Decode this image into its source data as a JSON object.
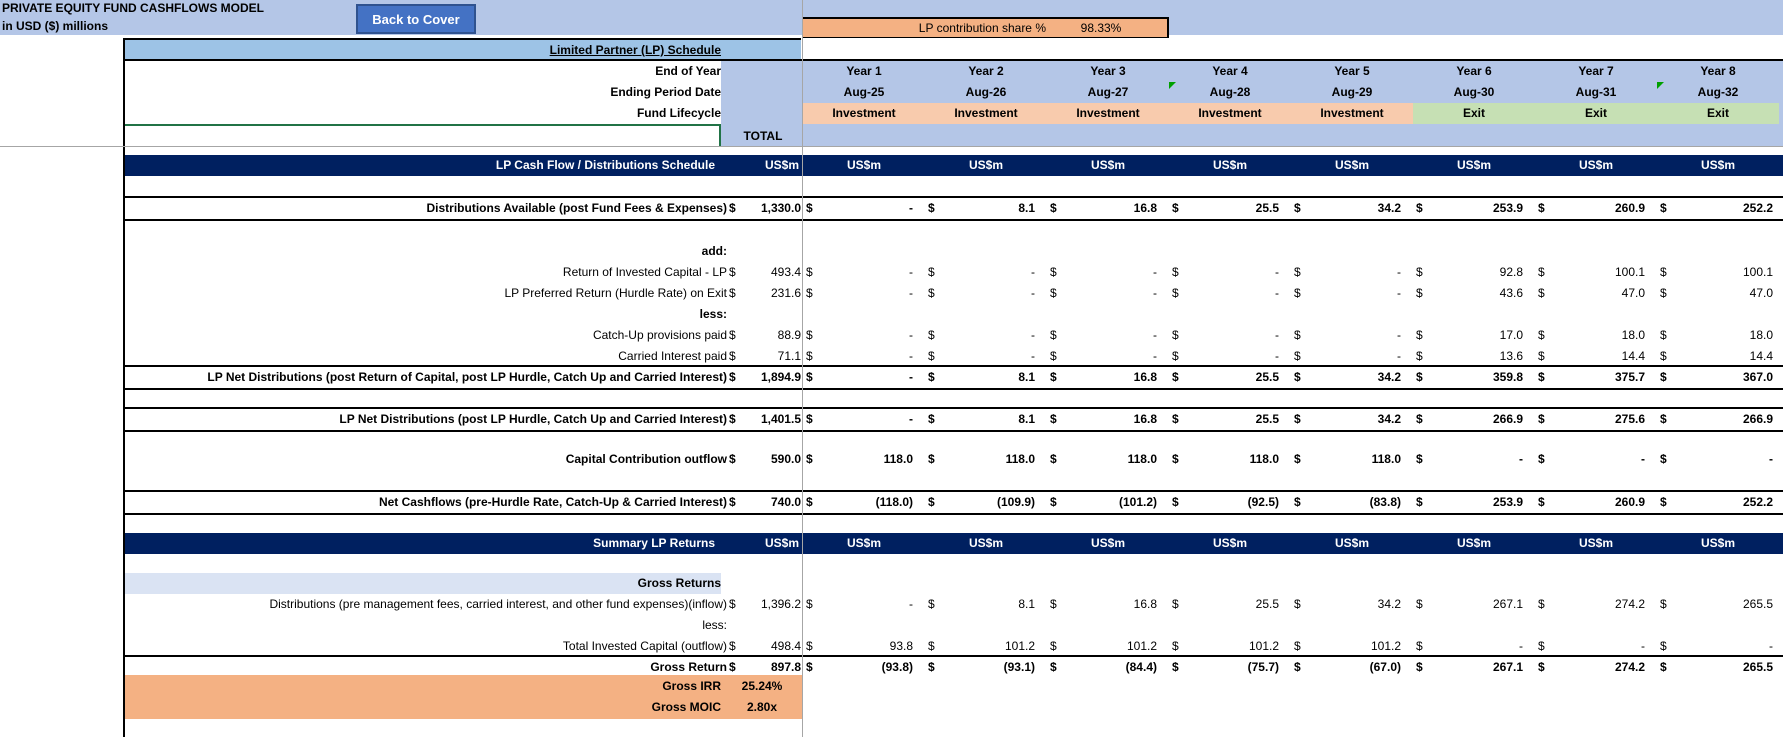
{
  "header": {
    "title": "PRIVATE EQUITY FUND CASHFLOWS MODEL",
    "subtitle": "in USD ($) millions",
    "back_button": "Back to Cover",
    "lp_share_label": "LP contribution share %",
    "lp_share_value": "98.33%"
  },
  "schedule": {
    "title": "Limited Partner (LP) Schedule",
    "row_labels": {
      "end_of_year": "End of Year",
      "ending_period_date": "Ending Period Date",
      "fund_lifecycle": "Fund Lifecycle"
    },
    "total_label": "TOTAL",
    "years": [
      "Year 1",
      "Year 2",
      "Year 3",
      "Year 4",
      "Year 5",
      "Year 6",
      "Year 7",
      "Year 8"
    ],
    "dates": [
      "Aug-25",
      "Aug-26",
      "Aug-27",
      "Aug-28",
      "Aug-29",
      "Aug-30",
      "Aug-31",
      "Aug-32"
    ],
    "lifecycle": [
      "Investment",
      "Investment",
      "Investment",
      "Investment",
      "Investment",
      "Exit",
      "Exit",
      "Exit"
    ]
  },
  "cashflow_section": {
    "title": "LP Cash Flow / Distributions Schedule",
    "unit": "US$m",
    "currency": "$",
    "rows": {
      "dist_available": {
        "label": "Distributions Available (post Fund Fees & Expenses)",
        "total": "1,330.0",
        "values": [
          "-",
          "8.1",
          "16.8",
          "25.5",
          "34.2",
          "253.9",
          "260.9",
          "252.2"
        ]
      },
      "add": {
        "label": "add:"
      },
      "return_capital": {
        "label": "Return of Invested Capital - LP",
        "total": "493.4",
        "values": [
          "-",
          "-",
          "-",
          "-",
          "-",
          "92.8",
          "100.1",
          "100.1"
        ]
      },
      "pref_return": {
        "label": "LP Preferred Return (Hurdle Rate) on Exit",
        "total": "231.6",
        "values": [
          "-",
          "-",
          "-",
          "-",
          "-",
          "43.6",
          "47.0",
          "47.0"
        ]
      },
      "less": {
        "label": "less:"
      },
      "catch_up": {
        "label": "Catch-Up provisions paid",
        "total": "88.9",
        "values": [
          "-",
          "-",
          "-",
          "-",
          "-",
          "17.0",
          "18.0",
          "18.0"
        ]
      },
      "carried": {
        "label": "Carried Interest paid",
        "total": "71.1",
        "values": [
          "-",
          "-",
          "-",
          "-",
          "-",
          "13.6",
          "14.4",
          "14.4"
        ]
      },
      "lp_net_1": {
        "label": "LP Net Distributions (post Return of Capital, post LP Hurdle, Catch Up and Carried Interest)",
        "total": "1,894.9",
        "values": [
          "-",
          "8.1",
          "16.8",
          "25.5",
          "34.2",
          "359.8",
          "375.7",
          "367.0"
        ]
      },
      "lp_net_2": {
        "label": "LP Net Distributions (post LP Hurdle, Catch Up and Carried Interest)",
        "total": "1,401.5",
        "values": [
          "-",
          "8.1",
          "16.8",
          "25.5",
          "34.2",
          "266.9",
          "275.6",
          "266.9"
        ]
      },
      "capital_contribution": {
        "label": "Capital Contribution outflow",
        "total": "590.0",
        "values": [
          "118.0",
          "118.0",
          "118.0",
          "118.0",
          "118.0",
          "-",
          "-",
          "-"
        ]
      },
      "net_cashflows": {
        "label": "Net Cashflows (pre-Hurdle Rate, Catch-Up & Carried Interest)",
        "total": "740.0",
        "values": [
          "(118.0)",
          "(109.9)",
          "(101.2)",
          "(92.5)",
          "(83.8)",
          "253.9",
          "260.9",
          "252.2"
        ]
      }
    }
  },
  "summary_section": {
    "title": "Summary LP Returns",
    "unit": "US$m",
    "gross_returns_label": "Gross Returns",
    "rows": {
      "distributions": {
        "label": "Distributions (pre management fees, carried interest, and other fund expenses)(inflow)",
        "total": "1,396.2",
        "values": [
          "-",
          "8.1",
          "16.8",
          "25.5",
          "34.2",
          "267.1",
          "274.2",
          "265.5"
        ]
      },
      "less": {
        "label": "less:"
      },
      "invested": {
        "label": "Total Invested Capital (outflow)",
        "total": "498.4",
        "values": [
          "93.8",
          "101.2",
          "101.2",
          "101.2",
          "101.2",
          "-",
          "-",
          "-"
        ]
      },
      "gross_return": {
        "label": "Gross Return",
        "total": "897.8",
        "values": [
          "(93.8)",
          "(93.1)",
          "(84.4)",
          "(75.7)",
          "(67.0)",
          "267.1",
          "274.2",
          "265.5"
        ]
      }
    },
    "gross_irr_label": "Gross IRR",
    "gross_irr_value": "25.24%",
    "gross_moic_label": "Gross MOIC",
    "gross_moic_value": "2.80x"
  },
  "colors": {
    "header_band": "#b4c6e7",
    "navy": "#002060",
    "button": "#4472c4",
    "orange": "#f4b183",
    "investment": "#f8cbad",
    "exit": "#c6e0b4",
    "lp_schedule_bar": "#9dc3e6"
  }
}
